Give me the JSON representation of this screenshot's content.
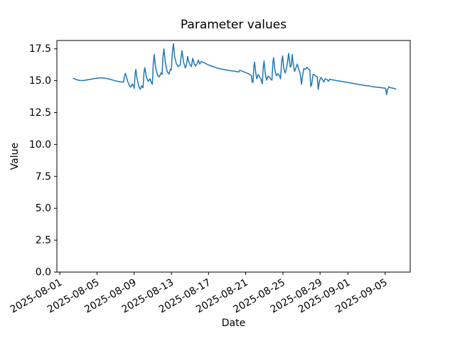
{
  "chart_data": {
    "type": "line",
    "title": "Parameter values",
    "xlabel": "Date",
    "ylabel": "Value",
    "background_color": "#ffffff",
    "spine_color": "#000000",
    "grid": false,
    "legend": false,
    "xlim_days": [
      -0.32,
      37.7
    ],
    "ylim": [
      0,
      18.15
    ],
    "x_epoch": "2025-08-01",
    "xticks": [
      {
        "day": 0,
        "label": "2025-08-01"
      },
      {
        "day": 4,
        "label": "2025-08-05"
      },
      {
        "day": 8,
        "label": "2025-08-09"
      },
      {
        "day": 12,
        "label": "2025-08-13"
      },
      {
        "day": 16,
        "label": "2025-08-17"
      },
      {
        "day": 20,
        "label": "2025-08-21"
      },
      {
        "day": 24,
        "label": "2025-08-25"
      },
      {
        "day": 28,
        "label": "2025-08-29"
      },
      {
        "day": 31,
        "label": "2025-09-01"
      },
      {
        "day": 35,
        "label": "2025-09-05"
      }
    ],
    "yticks": [
      {
        "value": 0,
        "label": "0.0"
      },
      {
        "value": 2.5,
        "label": "2.5"
      },
      {
        "value": 5,
        "label": "5.0"
      },
      {
        "value": 7.5,
        "label": "7.5"
      },
      {
        "value": 10,
        "label": "10.0"
      },
      {
        "value": 12.5,
        "label": "12.5"
      },
      {
        "value": 15,
        "label": "15.0"
      },
      {
        "value": 17.5,
        "label": "17.5"
      }
    ],
    "series": [
      {
        "name": "Parameter values",
        "color": "#1f77b4",
        "line_width": 1.5,
        "points": [
          [
            1.45,
            15.18
          ],
          [
            1.6,
            15.14
          ],
          [
            1.8,
            15.08
          ],
          [
            2.0,
            15.04
          ],
          [
            2.2,
            15.02
          ],
          [
            2.45,
            15.01
          ],
          [
            2.7,
            15.03
          ],
          [
            3.0,
            15.07
          ],
          [
            3.3,
            15.11
          ],
          [
            3.6,
            15.15
          ],
          [
            3.9,
            15.18
          ],
          [
            4.2,
            15.21
          ],
          [
            4.5,
            15.22
          ],
          [
            4.8,
            15.2
          ],
          [
            5.1,
            15.16
          ],
          [
            5.4,
            15.11
          ],
          [
            5.7,
            15.05
          ],
          [
            6.0,
            14.99
          ],
          [
            6.3,
            14.94
          ],
          [
            6.6,
            14.9
          ],
          [
            6.85,
            14.88
          ],
          [
            6.95,
            15.3
          ],
          [
            7.05,
            15.58
          ],
          [
            7.15,
            15.35
          ],
          [
            7.3,
            14.95
          ],
          [
            7.5,
            14.6
          ],
          [
            7.65,
            14.5
          ],
          [
            7.8,
            14.75
          ],
          [
            7.95,
            14.55
          ],
          [
            8.0,
            14.4
          ],
          [
            8.1,
            15.55
          ],
          [
            8.18,
            15.88
          ],
          [
            8.3,
            15.2
          ],
          [
            8.5,
            14.55
          ],
          [
            8.65,
            14.32
          ],
          [
            8.8,
            14.6
          ],
          [
            8.95,
            14.45
          ],
          [
            9.05,
            15.6
          ],
          [
            9.15,
            16.02
          ],
          [
            9.3,
            15.3
          ],
          [
            9.5,
            14.95
          ],
          [
            9.7,
            15.15
          ],
          [
            9.85,
            14.85
          ],
          [
            9.95,
            14.72
          ],
          [
            10.05,
            16.3
          ],
          [
            10.15,
            17.05
          ],
          [
            10.3,
            16.1
          ],
          [
            10.5,
            15.45
          ],
          [
            10.7,
            15.3
          ],
          [
            10.9,
            15.62
          ],
          [
            11.0,
            15.5
          ],
          [
            11.1,
            16.9
          ],
          [
            11.2,
            17.5
          ],
          [
            11.35,
            16.4
          ],
          [
            11.55,
            15.7
          ],
          [
            11.75,
            15.52
          ],
          [
            11.9,
            15.9
          ],
          [
            12.0,
            15.85
          ],
          [
            12.1,
            17.2
          ],
          [
            12.22,
            17.9
          ],
          [
            12.35,
            16.9
          ],
          [
            12.55,
            16.3
          ],
          [
            12.75,
            16.1
          ],
          [
            12.95,
            16.25
          ],
          [
            13.05,
            16.9
          ],
          [
            13.15,
            17.35
          ],
          [
            13.3,
            16.5
          ],
          [
            13.5,
            16.0
          ],
          [
            13.62,
            16.2
          ],
          [
            13.75,
            16.9
          ],
          [
            13.85,
            16.55
          ],
          [
            14.0,
            16.25
          ],
          [
            14.15,
            16.1
          ],
          [
            14.3,
            16.75
          ],
          [
            14.45,
            16.35
          ],
          [
            14.6,
            16.15
          ],
          [
            14.75,
            16.3
          ],
          [
            14.9,
            16.62
          ],
          [
            15.05,
            16.3
          ],
          [
            15.2,
            16.5
          ],
          [
            15.35,
            16.45
          ],
          [
            15.5,
            16.42
          ],
          [
            15.8,
            16.3
          ],
          [
            16.1,
            16.2
          ],
          [
            16.4,
            16.12
          ],
          [
            16.7,
            16.05
          ],
          [
            17.0,
            15.98
          ],
          [
            17.3,
            15.93
          ],
          [
            17.6,
            15.88
          ],
          [
            17.9,
            15.84
          ],
          [
            18.2,
            15.8
          ],
          [
            18.5,
            15.77
          ],
          [
            18.8,
            15.74
          ],
          [
            19.1,
            15.7
          ],
          [
            19.25,
            15.68
          ],
          [
            19.35,
            15.82
          ],
          [
            19.5,
            15.78
          ],
          [
            19.7,
            15.72
          ],
          [
            19.9,
            15.66
          ],
          [
            20.1,
            15.6
          ],
          [
            20.3,
            15.55
          ],
          [
            20.45,
            15.48
          ],
          [
            20.6,
            15.42
          ],
          [
            20.7,
            14.88
          ],
          [
            20.78,
            14.86
          ],
          [
            20.88,
            16.1
          ],
          [
            20.95,
            16.45
          ],
          [
            21.1,
            15.5
          ],
          [
            21.2,
            15.15
          ],
          [
            21.35,
            15.5
          ],
          [
            21.5,
            15.3
          ],
          [
            21.65,
            15.1
          ],
          [
            21.78,
            14.75
          ],
          [
            21.88,
            16.0
          ],
          [
            21.97,
            16.55
          ],
          [
            22.1,
            15.55
          ],
          [
            22.25,
            15.05
          ],
          [
            22.4,
            15.35
          ],
          [
            22.55,
            15.3
          ],
          [
            22.7,
            15.1
          ],
          [
            22.82,
            15.05
          ],
          [
            22.92,
            16.4
          ],
          [
            23.0,
            16.8
          ],
          [
            23.15,
            15.8
          ],
          [
            23.3,
            15.38
          ],
          [
            23.45,
            15.55
          ],
          [
            23.6,
            15.45
          ],
          [
            23.75,
            15.15
          ],
          [
            23.88,
            16.55
          ],
          [
            23.97,
            16.95
          ],
          [
            24.1,
            15.95
          ],
          [
            24.25,
            15.6
          ],
          [
            24.4,
            16.0
          ],
          [
            24.5,
            16.45
          ],
          [
            24.62,
            17.15
          ],
          [
            24.72,
            16.5
          ],
          [
            24.8,
            16.05
          ],
          [
            24.9,
            16.2
          ],
          [
            25.0,
            17.05
          ],
          [
            25.1,
            16.4
          ],
          [
            25.25,
            15.72
          ],
          [
            25.4,
            16.0
          ],
          [
            25.55,
            16.3
          ],
          [
            25.7,
            15.9
          ],
          [
            25.85,
            15.6
          ],
          [
            26.0,
            14.72
          ],
          [
            26.1,
            15.3
          ],
          [
            26.25,
            15.95
          ],
          [
            26.45,
            15.9
          ],
          [
            26.6,
            16.05
          ],
          [
            26.75,
            15.9
          ],
          [
            26.9,
            15.85
          ],
          [
            27.0,
            14.55
          ],
          [
            27.1,
            14.7
          ],
          [
            27.25,
            15.5
          ],
          [
            27.4,
            15.45
          ],
          [
            27.55,
            15.35
          ],
          [
            27.7,
            15.3
          ],
          [
            27.8,
            14.32
          ],
          [
            27.95,
            15.0
          ],
          [
            28.1,
            15.25
          ],
          [
            28.25,
            15.1
          ],
          [
            28.4,
            14.9
          ],
          [
            28.55,
            15.15
          ],
          [
            28.75,
            15.1
          ],
          [
            28.9,
            14.95
          ],
          [
            29.05,
            15.12
          ],
          [
            29.2,
            15.08
          ],
          [
            29.5,
            15.05
          ],
          [
            29.8,
            15.0
          ],
          [
            30.1,
            14.97
          ],
          [
            30.4,
            14.93
          ],
          [
            30.7,
            14.9
          ],
          [
            31.0,
            14.85
          ],
          [
            31.3,
            14.82
          ],
          [
            31.6,
            14.78
          ],
          [
            31.9,
            14.75
          ],
          [
            32.2,
            14.7
          ],
          [
            32.5,
            14.67
          ],
          [
            32.8,
            14.63
          ],
          [
            33.1,
            14.6
          ],
          [
            33.4,
            14.57
          ],
          [
            33.7,
            14.52
          ],
          [
            34.0,
            14.5
          ],
          [
            34.3,
            14.48
          ],
          [
            34.6,
            14.45
          ],
          [
            34.9,
            14.42
          ],
          [
            35.05,
            14.4
          ],
          [
            35.15,
            13.9
          ],
          [
            35.25,
            14.3
          ],
          [
            35.4,
            14.52
          ],
          [
            35.6,
            14.45
          ],
          [
            35.8,
            14.42
          ],
          [
            36.0,
            14.38
          ],
          [
            36.15,
            14.35
          ]
        ]
      }
    ]
  }
}
